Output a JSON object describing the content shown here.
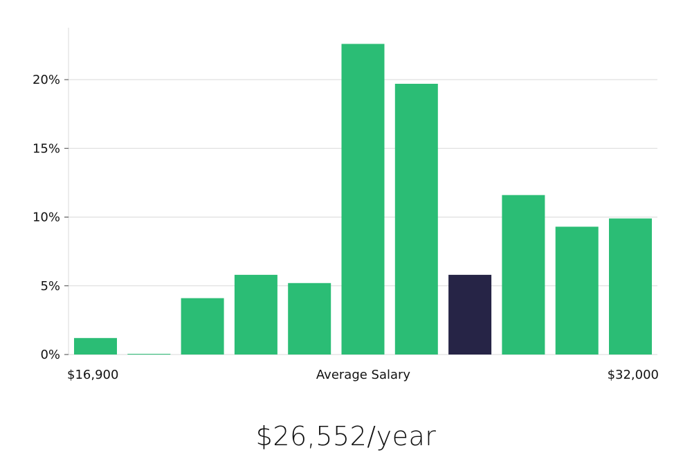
{
  "chart_data": {
    "type": "bar",
    "values": [
      1.2,
      0.05,
      4.1,
      5.8,
      5.2,
      22.6,
      19.7,
      5.8,
      11.6,
      9.3,
      9.9
    ],
    "highlight_index": 7,
    "ylim": [
      0,
      24
    ],
    "yticks": [
      "0%",
      "5%",
      "10%",
      "15%",
      "20%"
    ],
    "ytick_values": [
      0,
      5,
      10,
      15,
      20
    ],
    "x_min_label": "$16,900",
    "x_center_label": "Average Salary",
    "x_max_label": "$32,000",
    "grid": true,
    "colors": {
      "bar": "#2bbd75",
      "highlight": "#262446",
      "grid": "#d9d9d9"
    }
  },
  "salary_text": "$26,552/year"
}
